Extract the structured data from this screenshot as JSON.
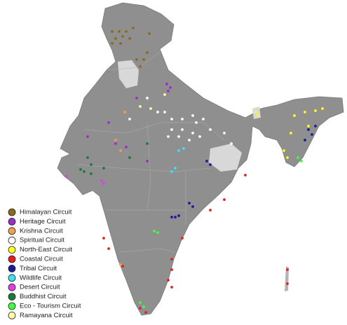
{
  "legend": {
    "items": [
      {
        "name": "Himalayan Circuit",
        "color": "#8b6a1e"
      },
      {
        "name": "Heritage Circuit",
        "color": "#9a2fc4"
      },
      {
        "name": "Krishna Circuit",
        "color": "#f0a050"
      },
      {
        "name": "Spiritual Circuit",
        "color": "#ffffff"
      },
      {
        "name": "North-East Circuit",
        "color": "#ffff20"
      },
      {
        "name": "Coastal Circuit",
        "color": "#e02020"
      },
      {
        "name": "Tribal Circuit",
        "color": "#1a1a9a"
      },
      {
        "name": "Wildlife Circuit",
        "color": "#40e0f0"
      },
      {
        "name": "Desert Circuit",
        "color": "#e040e0"
      },
      {
        "name": "Buddhist Circuit",
        "color": "#1a7a3a"
      },
      {
        "name": "Eco - Tourism Circuit",
        "color": "#40ff40"
      },
      {
        "name": "Ramayana Circuit",
        "color": "#ffffa8"
      }
    ]
  }
}
